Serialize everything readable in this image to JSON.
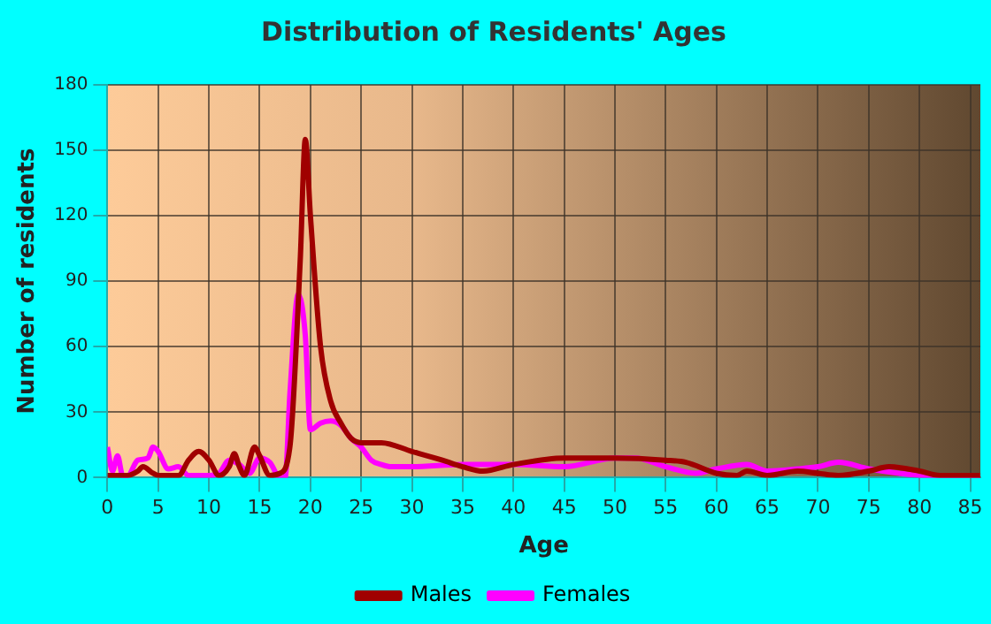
{
  "chart_data": {
    "type": "line",
    "title": "Distribution of Residents' Ages",
    "xlabel": "Age",
    "ylabel": "Number of residents",
    "xlim": [
      0,
      86
    ],
    "xticks": [
      0,
      5,
      10,
      15,
      20,
      25,
      30,
      35,
      40,
      45,
      50,
      55,
      60,
      65,
      70,
      75,
      80,
      85
    ],
    "ylim": [
      0,
      180
    ],
    "yticks": [
      0,
      30,
      60,
      90,
      120,
      150,
      180
    ],
    "grid": true,
    "legend": "bottom",
    "marker": "none",
    "series": [
      {
        "name": "Males",
        "color": "#a00000",
        "x": [
          0,
          2,
          3,
          3.5,
          4.5,
          5,
          7,
          8,
          9,
          10,
          11,
          12,
          12.5,
          13,
          13.5,
          14.5,
          15,
          16,
          17,
          18,
          19,
          19.5,
          20,
          21,
          22,
          23,
          24,
          25,
          27,
          30,
          33,
          35,
          37,
          40,
          45,
          50,
          55,
          57,
          60,
          62,
          63,
          65,
          68,
          70,
          72,
          75,
          77,
          80,
          82,
          86
        ],
        "values": [
          1,
          1,
          3,
          5,
          2,
          1,
          1,
          8,
          12,
          8,
          1,
          5,
          11,
          5,
          1,
          14,
          10,
          1,
          2,
          15,
          100,
          155,
          120,
          60,
          35,
          25,
          18,
          16,
          16,
          12,
          8,
          5,
          3,
          6,
          9,
          9,
          8,
          7,
          2,
          1,
          3,
          1,
          3,
          2,
          1,
          3,
          5,
          3,
          1,
          1
        ]
      },
      {
        "name": "Females",
        "color": "#ff00ff",
        "x": [
          0,
          0.5,
          1,
          1.5,
          2,
          3,
          4,
          4.5,
          5,
          6,
          7,
          8,
          10,
          11,
          12,
          13,
          14,
          15,
          16,
          17,
          17.5,
          18,
          18.8,
          19.5,
          20,
          21,
          22,
          23,
          24,
          25,
          26,
          27,
          28,
          30,
          35,
          40,
          45,
          50,
          52,
          55,
          58,
          60,
          63,
          65,
          68,
          70,
          72,
          75,
          78,
          80,
          82,
          86
        ],
        "values": [
          14,
          3,
          10,
          1,
          1,
          8,
          9,
          14,
          12,
          4,
          5,
          1,
          1,
          2,
          8,
          6,
          2,
          9,
          7,
          0,
          0,
          40,
          84,
          65,
          22,
          25,
          26,
          24,
          18,
          14,
          8,
          6,
          5,
          5,
          6,
          6,
          5,
          9,
          9,
          5,
          2,
          4,
          6,
          3,
          4,
          5,
          7,
          4,
          2,
          1,
          0,
          0
        ]
      }
    ]
  }
}
